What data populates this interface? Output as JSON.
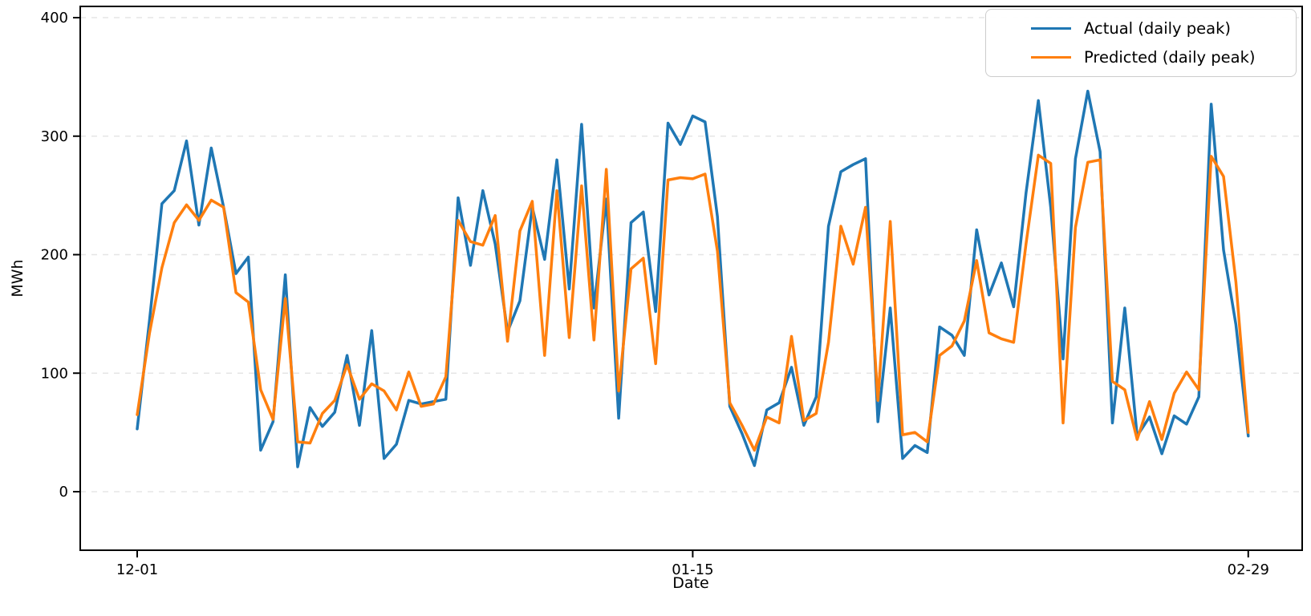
{
  "chart": {
    "background_color": "#ffffff",
    "grid_color": "#e5e5e5",
    "spine_color": "#000000",
    "actual_color": "#1f77b4",
    "predicted_color": "#ff7f0e"
  },
  "chart_data": {
    "type": "line",
    "title": "",
    "xlabel": "Date",
    "ylabel": "MWh",
    "x_start": "12-01",
    "x_end": "02-29",
    "x_frequency": "daily",
    "num_points": 91,
    "x_tick_day_indices": [
      0,
      45,
      90
    ],
    "x_tick_labels": [
      "12-01",
      "01-15",
      "02-29"
    ],
    "y_ticks": [
      0,
      100,
      200,
      300,
      400
    ],
    "ylim": [
      -49,
      409
    ],
    "grid": "horizontal-dashed",
    "legend_position": "upper right",
    "series": [
      {
        "name": "Actual (daily peak)",
        "color": "#1f77b4",
        "values": [
          53,
          145,
          243,
          254,
          296,
          225,
          290,
          240,
          184,
          198,
          35,
          59,
          183,
          21,
          71,
          55,
          67,
          115,
          56,
          136,
          28,
          40,
          77,
          74,
          76,
          78,
          248,
          191,
          254,
          209,
          135,
          161,
          240,
          196,
          280,
          171,
          310,
          155,
          247,
          62,
          227,
          236,
          152,
          311,
          293,
          317,
          312,
          232,
          72,
          49,
          22,
          69,
          75,
          105,
          56,
          80,
          224,
          270,
          276,
          281,
          59,
          155,
          28,
          39,
          33,
          139,
          132,
          115,
          221,
          166,
          193,
          156,
          252,
          330,
          240,
          112,
          281,
          338,
          287,
          58,
          155,
          47,
          63,
          32,
          64,
          57,
          80,
          327,
          204,
          141,
          47
        ]
      },
      {
        "name": "Predicted (daily peak)",
        "color": "#ff7f0e",
        "values": [
          65,
          134,
          189,
          227,
          242,
          229,
          246,
          240,
          168,
          160,
          86,
          61,
          163,
          42,
          41,
          66,
          77,
          107,
          78,
          91,
          85,
          69,
          101,
          72,
          74,
          97,
          229,
          211,
          208,
          233,
          127,
          220,
          245,
          115,
          254,
          130,
          258,
          128,
          272,
          85,
          188,
          197,
          108,
          263,
          265,
          264,
          268,
          203,
          75,
          56,
          35,
          63,
          58,
          131,
          60,
          66,
          126,
          224,
          192,
          240,
          77,
          228,
          48,
          50,
          42,
          115,
          123,
          144,
          195,
          134,
          129,
          126,
          209,
          284,
          277,
          58,
          223,
          278,
          280,
          93,
          86,
          44,
          76,
          44,
          83,
          101,
          86,
          283,
          266,
          177,
          50
        ]
      }
    ]
  }
}
